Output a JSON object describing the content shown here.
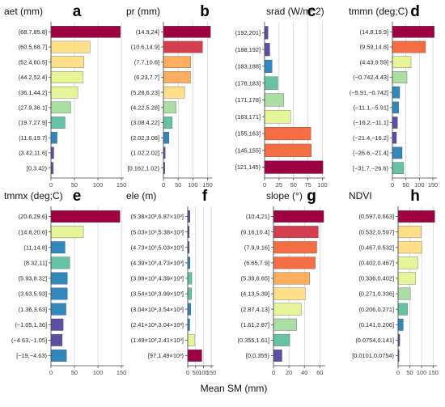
{
  "xlabel": "Mean SM (mm)",
  "colors": [
    "#9e0142",
    "#d53e4f",
    "#f46d43",
    "#fdae61",
    "#fee08b",
    "#e6f598",
    "#abdda4",
    "#66c2a5",
    "#3288bd",
    "#5e4fa2"
  ],
  "chart_data": [
    {
      "type": "bar",
      "orientation": "horizontal",
      "letter": "a",
      "title": "aet (mm)",
      "categories": [
        "(68.7,85.8]",
        "(60.5,68.7]",
        "(52.4,60.5]",
        "(44.2,52.4]",
        "(36.1,44.2]",
        "(27.9,36.1]",
        "(19.7,27.9]",
        "(11.6,19.7]",
        "(3.42,11.6]",
        "[0,3.42)"
      ],
      "values": [
        148,
        83,
        70,
        68,
        57,
        42,
        30,
        13,
        6,
        5
      ],
      "color_index": [
        0,
        4,
        4,
        5,
        5,
        6,
        7,
        8,
        9,
        9
      ],
      "xlim": [
        0,
        155
      ],
      "ticks": [
        0,
        50,
        100,
        150
      ],
      "tick_labels": [
        "0",
        "50",
        "100",
        "150"
      ]
    },
    {
      "type": "bar",
      "orientation": "horizontal",
      "letter": "b",
      "title": "pr (mm)",
      "categories": [
        "(14.9,24]",
        "(10.6,14.9]",
        "(7.7,10.6]",
        "(6.23,7.7]",
        "(5.28,6.23]",
        "(4.22,5.28]",
        "(3.08,4.22]",
        "(2.02,3.08]",
        "(1.02,2.02]",
        "[0.162,1.02)"
      ],
      "values": [
        160,
        133,
        93,
        92,
        72,
        43,
        30,
        19,
        6,
        5
      ],
      "color_index": [
        0,
        1,
        3,
        3,
        4,
        6,
        7,
        8,
        9,
        9
      ],
      "xlim": [
        0,
        165
      ],
      "ticks": [
        0,
        50,
        100,
        150
      ],
      "tick_labels": [
        "0",
        "50",
        "100",
        "150"
      ]
    },
    {
      "type": "bar",
      "orientation": "horizontal",
      "letter": "c",
      "title": "srad (W/m^2)",
      "categories": [
        "(192,201]",
        "(188,192]",
        "(183,188]",
        "(178,183]",
        "(171,178]",
        "(163,171]",
        "(155,163]",
        "(145,155]",
        "[121,145)"
      ],
      "values": [
        6,
        9,
        13,
        23,
        33,
        45,
        80,
        81,
        101
      ],
      "color_index": [
        9,
        9,
        8,
        7,
        6,
        5,
        2,
        2,
        0
      ],
      "xlim": [
        0,
        105
      ],
      "ticks": [
        0,
        25,
        50,
        75,
        100
      ],
      "tick_labels": [
        "0",
        "25",
        "50",
        "75",
        "100"
      ]
    },
    {
      "type": "bar",
      "orientation": "horizontal",
      "letter": "d",
      "title": "tmmn (deg;C)",
      "categories": [
        "(14.8,19.9]",
        "(9.59,14.8]",
        "(4.43,9.59]",
        "(−0.742,4.43]",
        "(−5.91,−0.742]",
        "(−11.1,−5.91]",
        "(−16.2,−11.1]",
        "(−21.4,−16.2]",
        "(−26.6,−21.4]",
        "[−31.7,−26.6)"
      ],
      "values": [
        155,
        123,
        69,
        54,
        27,
        23,
        19,
        15,
        36,
        42
      ],
      "color_index": [
        0,
        2,
        5,
        6,
        8,
        8,
        9,
        9,
        8,
        7
      ],
      "xlim": [
        0,
        165
      ],
      "ticks": [
        0,
        50,
        100,
        150
      ],
      "tick_labels": [
        "0",
        "50",
        "100",
        "150"
      ]
    },
    {
      "type": "bar",
      "orientation": "horizontal",
      "letter": "e",
      "title": "tmmx (deg;C)",
      "categories": [
        "(20.6,29.6]",
        "(14.8,20.6]",
        "(11,14.8]",
        "(8.32,11]",
        "(5.93,8.32]",
        "(3.63,5.93]",
        "(1.36,3.63]",
        "(−1.05,1.36]",
        "(−4.63,−1.05]",
        "[−19,−4.63)"
      ],
      "values": [
        147,
        69,
        30,
        40,
        35,
        35,
        32,
        26,
        24,
        33
      ],
      "color_index": [
        0,
        5,
        8,
        7,
        8,
        8,
        8,
        9,
        9,
        8
      ],
      "xlim": [
        0,
        155
      ],
      "ticks": [
        0,
        50,
        100,
        150
      ],
      "tick_labels": [
        "0",
        "50",
        "100",
        "150"
      ]
    },
    {
      "type": "bar",
      "orientation": "horizontal",
      "letter": "f",
      "title": "ele (m)",
      "categories": [
        "(5.38×10³,6.87×10³]",
        "(5.03×10³,5.38×10³]",
        "(4.73×10³,5.03×10³]",
        "(4.39×10³,4.73×10³]",
        "(3.99×10³,4.39×10³]",
        "(3.54×10³,3.99×10³]",
        "(3.04×10³,3.54×10³]",
        "(2.41×10³,3.04×10³]",
        "(1.49×10³,2.41×10³]",
        "[97,1.49×10³)"
      ],
      "values": [
        14,
        10,
        10,
        15,
        26,
        24,
        20,
        13,
        43,
        90
      ],
      "color_index": [
        9,
        9,
        9,
        8,
        7,
        7,
        8,
        8,
        5,
        0
      ],
      "xlim": [
        0,
        165
      ],
      "ticks": [
        0,
        50,
        100,
        150
      ],
      "tick_labels": [
        "0",
        "50",
        "100",
        "150"
      ]
    },
    {
      "type": "bar",
      "orientation": "horizontal",
      "letter": "g",
      "title": "slope (°)",
      "categories": [
        "(10.4,21]",
        "(9.16,10.4]",
        "(7.9,9.16]",
        "(6.65,7.9]",
        "(5.39,6.65]",
        "(4.13,5.39]",
        "(2.87,4.13]",
        "(1.61,2.87]",
        "(0.355,1.61]",
        "[0,0.355)"
      ],
      "values": [
        65,
        58,
        56,
        54,
        47,
        41,
        36,
        30,
        21,
        11
      ],
      "color_index": [
        0,
        1,
        2,
        2,
        3,
        4,
        5,
        6,
        7,
        9
      ],
      "xlim": [
        0,
        67
      ],
      "ticks": [
        0,
        20,
        40,
        60
      ],
      "tick_labels": [
        "0",
        "20",
        "40",
        "60"
      ]
    },
    {
      "type": "bar",
      "orientation": "horizontal",
      "letter": "h",
      "title": "NDVI",
      "categories": [
        "(0.597,0.663]",
        "(0.532,0.597]",
        "(0.467,0.532]",
        "(0.402,0.467]",
        "(0.336,0.402]",
        "(0.271,0.336]",
        "(0.206,0.271]",
        "(0.141,0.206]",
        "(0.0754,0.141]",
        "[0.0101,0.0754)"
      ],
      "values": [
        156,
        97,
        101,
        84,
        74,
        52,
        40,
        22,
        7,
        4
      ],
      "color_index": [
        0,
        4,
        4,
        5,
        5,
        6,
        7,
        8,
        9,
        9
      ],
      "xlim": [
        0,
        165
      ],
      "ticks": [
        0,
        50,
        100,
        150
      ],
      "tick_labels": [
        "0",
        "50",
        "100",
        "150"
      ]
    }
  ]
}
